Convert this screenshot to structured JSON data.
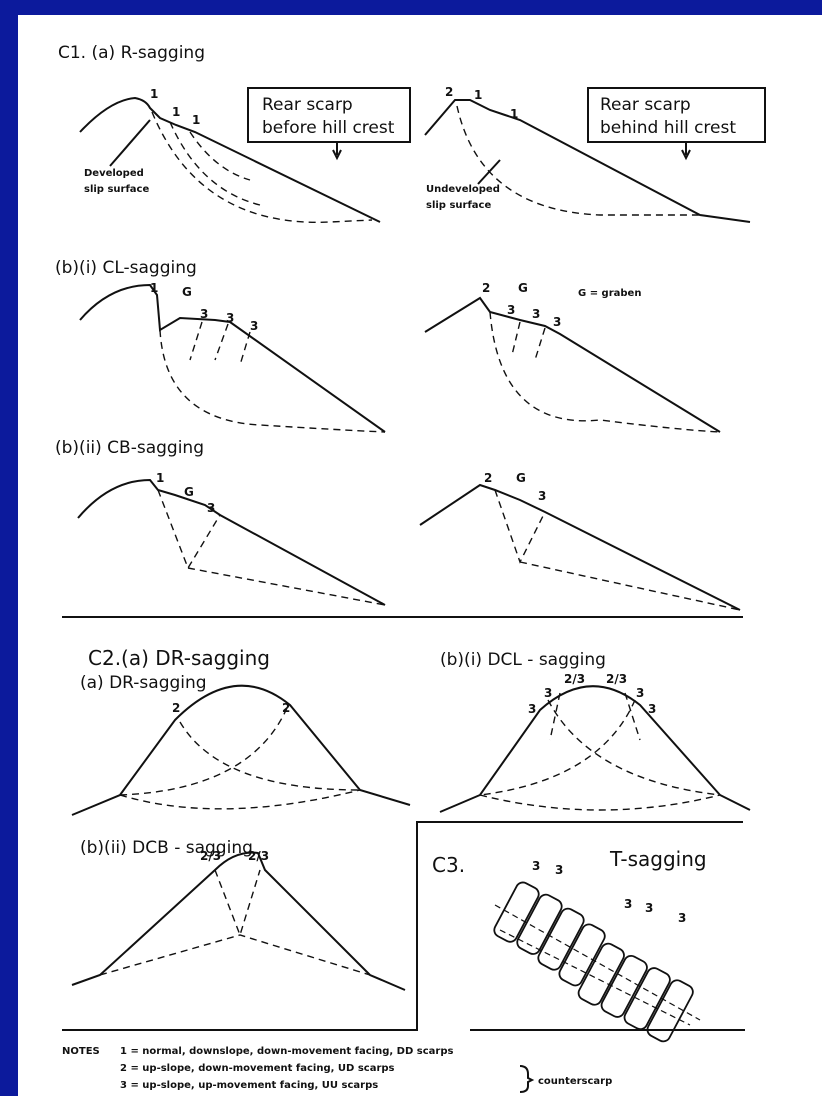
{
  "c1": {
    "title": "C1. (a) R-sagging",
    "r_before": {
      "box": [
        "Rear scarp",
        "before hill crest"
      ],
      "note": [
        "Developed",
        "slip surface"
      ],
      "scarps": [
        "1",
        "1",
        "1"
      ]
    },
    "r_behind": {
      "box": [
        "Rear scarp",
        "behind hill crest"
      ],
      "note": [
        "Undeveloped",
        "slip surface"
      ],
      "scarps": [
        "2",
        "1",
        "1"
      ]
    },
    "cl": {
      "title": "(b)(i) CL-sagging",
      "left": [
        "1",
        "G",
        "3",
        "3",
        "3"
      ],
      "right": [
        "2",
        "G",
        "3",
        "3",
        "3"
      ],
      "legend": "G = graben"
    },
    "cb": {
      "title": "(b)(ii) CB-sagging",
      "left": [
        "1",
        "G",
        "3"
      ],
      "right": [
        "2",
        "G",
        "3"
      ]
    }
  },
  "c2": {
    "dr": {
      "title": "C2.(a) DR-sagging",
      "subtitle": "(a) DR-sagging",
      "scarps": [
        "2",
        "2"
      ]
    },
    "dcl": {
      "title": "(b)(i) DCL - sagging",
      "scarps": [
        "3",
        "3",
        "2/3",
        "2/3",
        "3",
        "3"
      ]
    },
    "dcb": {
      "title": "(b)(ii) DCB - sagging",
      "scarps": [
        "2/3",
        "2/3"
      ]
    }
  },
  "c3": {
    "label": "C3.",
    "title": "T-sagging",
    "scarps": [
      "3",
      "3",
      "3",
      "3",
      "3"
    ]
  },
  "notes": {
    "heading": "NOTES",
    "items": [
      "1 = normal, downslope, down-movement facing, DD scarps",
      "2 = up-slope, down-movement facing, UD scarps",
      "3 = up-slope, up-movement facing, UU scarps"
    ],
    "bracket": "counterscarp"
  }
}
